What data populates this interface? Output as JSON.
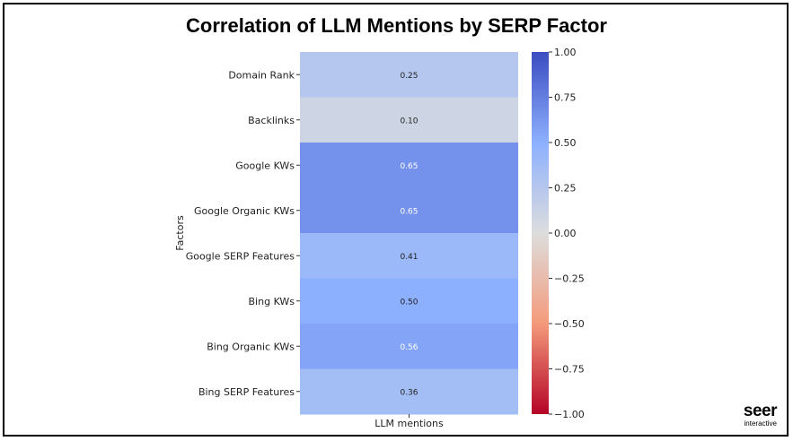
{
  "title": "Correlation of LLM Mentions by SERP Factor",
  "logo": {
    "main": "seer",
    "sub": "interactive"
  },
  "chart_data": {
    "type": "heatmap",
    "title": "Correlation of LLM Mentions by SERP Factor",
    "xlabel": "",
    "ylabel": "Factors",
    "columns": [
      "LLM mentions"
    ],
    "rows": [
      "Domain Rank",
      "Backlinks",
      "Google KWs",
      "Google Organic KWs",
      "Google SERP Features",
      "Bing KWs",
      "Bing Organic KWs",
      "Bing SERP Features"
    ],
    "values": [
      0.25,
      0.1,
      0.65,
      0.65,
      0.41,
      0.5,
      0.56,
      0.36
    ],
    "value_labels": [
      "0.25",
      "0.10",
      "0.65",
      "0.65",
      "0.41",
      "0.50",
      "0.56",
      "0.36"
    ],
    "colorbar": {
      "colormap": "coolwarm",
      "range": [
        -1.0,
        1.0
      ],
      "ticks": [
        1.0,
        0.75,
        0.5,
        0.25,
        0.0,
        -0.25,
        -0.5,
        -0.75,
        -1.0
      ],
      "tick_labels": [
        "1.00",
        "0.75",
        "0.50",
        "0.25",
        "0.00",
        "−0.25",
        "−0.50",
        "−0.75",
        "−1.00"
      ]
    }
  }
}
